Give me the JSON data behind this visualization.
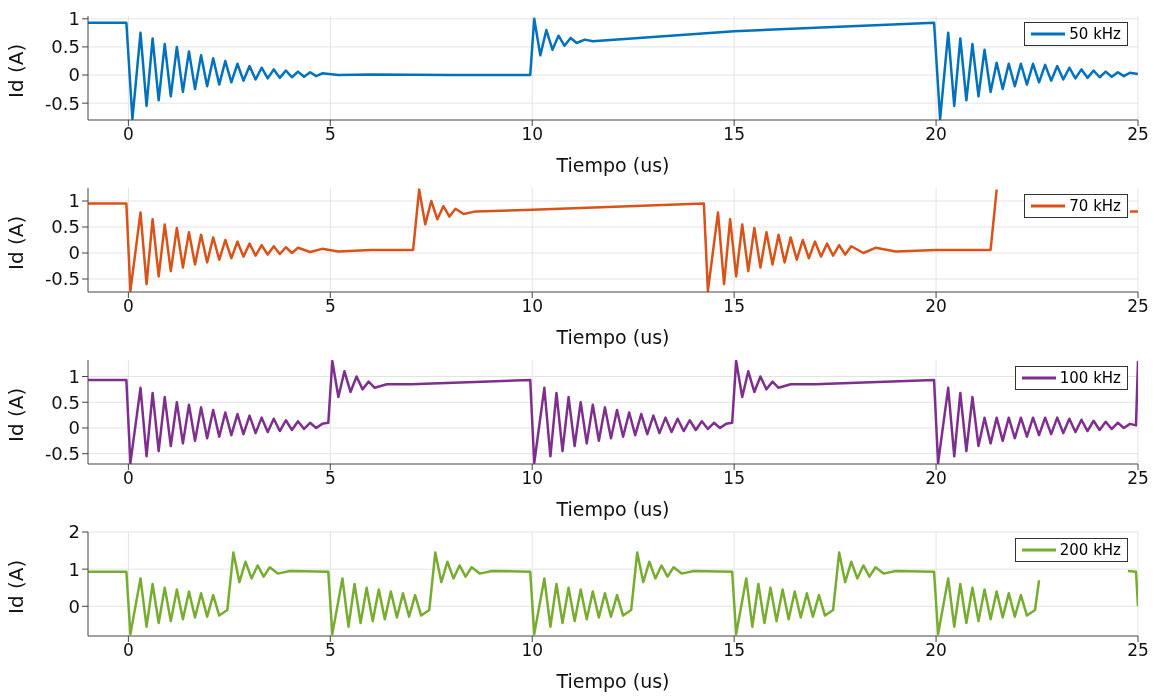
{
  "chart_data": [
    {
      "type": "line",
      "xlabel": "Tiempo (us)",
      "ylabel": "Id (A)",
      "xlim": [
        -1,
        25
      ],
      "xticks": [
        0,
        5,
        10,
        15,
        20,
        25
      ],
      "ylim": [
        -0.8,
        1.05
      ],
      "yticks": [
        -0.5,
        0,
        0.5,
        1
      ],
      "grid": true,
      "legend": "top right",
      "series": [
        {
          "name": "50 kHz",
          "color": "#0072bd",
          "x": [
            -1,
            -0.05,
            0.1,
            0.3,
            0.45,
            0.6,
            0.75,
            0.9,
            1.05,
            1.2,
            1.35,
            1.5,
            1.65,
            1.8,
            1.95,
            2.1,
            2.25,
            2.4,
            2.55,
            2.7,
            2.85,
            3.0,
            3.15,
            3.3,
            3.45,
            3.6,
            3.75,
            3.9,
            4.05,
            4.2,
            4.35,
            4.5,
            4.65,
            4.8,
            5.2,
            6,
            8,
            9.95,
            10.05,
            10.2,
            10.35,
            10.5,
            10.65,
            10.8,
            10.95,
            11.1,
            11.3,
            11.5,
            15,
            19.95,
            20.1,
            20.3,
            20.45,
            20.6,
            20.75,
            20.9,
            21.05,
            21.2,
            21.35,
            21.5,
            21.65,
            21.8,
            21.95,
            22.1,
            22.25,
            22.4,
            22.55,
            22.7,
            22.85,
            23.0,
            23.15,
            23.3,
            23.45,
            23.6,
            23.75,
            23.9,
            24.05,
            24.2,
            24.35,
            24.5,
            24.65,
            24.8,
            25
          ],
          "values": [
            0.93,
            0.93,
            -0.78,
            0.75,
            -0.55,
            0.65,
            -0.45,
            0.55,
            -0.38,
            0.5,
            -0.3,
            0.42,
            -0.25,
            0.35,
            -0.2,
            0.3,
            -0.17,
            0.25,
            -0.13,
            0.2,
            -0.1,
            0.16,
            -0.08,
            0.13,
            -0.06,
            0.1,
            -0.05,
            0.08,
            -0.04,
            0.06,
            -0.03,
            0.05,
            -0.02,
            0.03,
            0,
            0.01,
            0,
            0,
            1.0,
            0.35,
            0.8,
            0.45,
            0.7,
            0.52,
            0.66,
            0.57,
            0.63,
            0.6,
            0.78,
            0.93,
            -0.78,
            0.75,
            -0.55,
            0.65,
            -0.45,
            0.55,
            -0.38,
            0.45,
            -0.3,
            0.22,
            -0.25,
            0.2,
            -0.2,
            0.2,
            -0.17,
            0.2,
            -0.13,
            0.18,
            -0.1,
            0.16,
            -0.08,
            0.13,
            -0.06,
            0.1,
            -0.05,
            0.08,
            -0.04,
            0.06,
            -0.03,
            0.05,
            -0.02,
            0.04,
            0.02
          ]
        }
      ]
    },
    {
      "type": "line",
      "xlabel": "Tiempo (us)",
      "ylabel": "Id (A)",
      "xlim": [
        -1,
        25
      ],
      "xticks": [
        0,
        5,
        10,
        15,
        20,
        25
      ],
      "ylim": [
        -0.75,
        1.25
      ],
      "yticks": [
        -0.5,
        0,
        0.5,
        1
      ],
      "grid": true,
      "legend": "top right",
      "series": [
        {
          "name": "70 kHz",
          "color": "#d95319",
          "x": [
            -1,
            -0.05,
            0.05,
            0.3,
            0.45,
            0.6,
            0.75,
            0.9,
            1.05,
            1.2,
            1.35,
            1.5,
            1.65,
            1.8,
            1.95,
            2.1,
            2.25,
            2.4,
            2.55,
            2.7,
            2.85,
            3.0,
            3.15,
            3.3,
            3.45,
            3.6,
            3.75,
            3.9,
            4.05,
            4.2,
            4.5,
            4.8,
            5.2,
            6,
            7.05,
            7.2,
            7.35,
            7.5,
            7.65,
            7.8,
            7.95,
            8.1,
            8.3,
            8.6,
            10,
            14.25,
            14.35,
            14.6,
            14.75,
            14.9,
            15.05,
            15.2,
            15.35,
            15.5,
            15.65,
            15.8,
            15.95,
            16.1,
            16.25,
            16.4,
            16.55,
            16.7,
            16.85,
            17.0,
            17.15,
            17.3,
            17.45,
            17.6,
            17.75,
            17.9,
            18.2,
            18.5,
            19,
            20,
            21.35,
            21.5,
            21.6,
            24.8,
            25
          ],
          "values": [
            0.95,
            0.95,
            -0.73,
            0.78,
            -0.6,
            0.65,
            -0.45,
            0.55,
            -0.35,
            0.48,
            -0.28,
            0.4,
            -0.22,
            0.35,
            -0.18,
            0.3,
            -0.13,
            0.25,
            -0.1,
            0.22,
            -0.07,
            0.18,
            -0.05,
            0.15,
            -0.03,
            0.13,
            -0.02,
            0.11,
            0,
            0.1,
            0.02,
            0.08,
            0.03,
            0.06,
            0.06,
            1.22,
            0.55,
            1.0,
            0.65,
            0.9,
            0.7,
            0.85,
            0.75,
            0.8,
            0.83,
            0.95,
            -0.73,
            0.78,
            -0.6,
            0.65,
            -0.45,
            0.55,
            -0.35,
            0.48,
            -0.28,
            0.4,
            -0.22,
            0.35,
            -0.18,
            0.3,
            -0.13,
            0.25,
            -0.1,
            0.22,
            -0.07,
            0.18,
            -0.05,
            0.15,
            -0.03,
            0.13,
            0,
            0.1,
            0.03,
            0.06,
            0.06,
            1.22,
            null,
            0.8,
            0.8
          ]
        }
      ]
    },
    {
      "type": "line",
      "xlabel": "Tiempo (us)",
      "ylabel": "Id (A)",
      "xlim": [
        -1,
        25
      ],
      "xticks": [
        0,
        5,
        10,
        15,
        20,
        25
      ],
      "ylim": [
        -0.7,
        1.32
      ],
      "yticks": [
        -0.5,
        0,
        0.5,
        1
      ],
      "grid": true,
      "legend": "top right",
      "series": [
        {
          "name": "100 kHz",
          "color": "#7e2f8e",
          "x": [
            -1,
            -0.05,
            0.05,
            0.3,
            0.45,
            0.6,
            0.75,
            0.9,
            1.05,
            1.2,
            1.35,
            1.5,
            1.65,
            1.8,
            1.95,
            2.1,
            2.25,
            2.4,
            2.55,
            2.7,
            2.85,
            3.0,
            3.15,
            3.3,
            3.45,
            3.6,
            3.75,
            3.9,
            4.05,
            4.2,
            4.35,
            4.5,
            4.65,
            4.8,
            4.95,
            5.05,
            5.2,
            5.35,
            5.5,
            5.65,
            5.8,
            5.95,
            6.1,
            6.4,
            7,
            9.95,
            10.05,
            10.3,
            10.45,
            10.6,
            10.75,
            10.9,
            11.05,
            11.2,
            11.35,
            11.5,
            11.65,
            11.8,
            11.95,
            12.1,
            12.25,
            12.4,
            12.55,
            12.7,
            12.85,
            13.0,
            13.15,
            13.3,
            13.45,
            13.6,
            13.75,
            13.9,
            14.05,
            14.2,
            14.35,
            14.5,
            14.65,
            14.8,
            14.95,
            15.05,
            15.2,
            15.35,
            15.5,
            15.65,
            15.8,
            15.95,
            16.1,
            16.4,
            17,
            19.95,
            20.05,
            20.3,
            20.45,
            20.6,
            20.75,
            20.9,
            21.05,
            21.2,
            21.35,
            21.5,
            21.65,
            21.8,
            21.95,
            22.1,
            22.25,
            22.4,
            22.55,
            22.7,
            22.85,
            23.0,
            23.15,
            23.3,
            23.45,
            23.6,
            23.75,
            23.9,
            24.05,
            24.2,
            24.35,
            24.5,
            24.65,
            24.8,
            24.95,
            25
          ],
          "values": [
            0.93,
            0.93,
            -0.68,
            0.78,
            -0.55,
            0.68,
            -0.45,
            0.6,
            -0.35,
            0.5,
            -0.3,
            0.45,
            -0.25,
            0.4,
            -0.2,
            0.35,
            -0.17,
            0.3,
            -0.14,
            0.27,
            -0.12,
            0.24,
            -0.1,
            0.2,
            -0.08,
            0.18,
            -0.06,
            0.15,
            -0.04,
            0.13,
            -0.02,
            0.1,
            0,
            0.08,
            0.1,
            1.3,
            0.6,
            1.1,
            0.7,
            1.0,
            0.75,
            0.9,
            0.78,
            0.85,
            0.85,
            0.93,
            -0.68,
            0.78,
            -0.55,
            0.68,
            -0.45,
            0.6,
            -0.35,
            0.5,
            -0.3,
            0.45,
            -0.25,
            0.4,
            -0.2,
            0.35,
            -0.17,
            0.3,
            -0.14,
            0.27,
            -0.12,
            0.24,
            -0.1,
            0.2,
            -0.08,
            0.18,
            -0.06,
            0.15,
            -0.04,
            0.13,
            -0.02,
            0.1,
            0,
            0.08,
            0.1,
            1.3,
            0.6,
            1.1,
            0.7,
            1.0,
            0.75,
            0.9,
            0.78,
            0.85,
            0.85,
            0.93,
            -0.68,
            0.78,
            -0.55,
            0.68,
            -0.45,
            0.6,
            -0.35,
            0.2,
            -0.3,
            0.2,
            -0.25,
            0.2,
            -0.2,
            0.2,
            -0.17,
            0.2,
            -0.14,
            0.2,
            -0.12,
            0.2,
            -0.1,
            0.18,
            -0.08,
            0.16,
            -0.06,
            0.14,
            -0.04,
            0.12,
            -0.02,
            0.1,
            0,
            0.08,
            0.05,
            1.3
          ]
        }
      ]
    },
    {
      "type": "line",
      "xlabel": "Tiempo (us)",
      "ylabel": "Id (A)",
      "xlim": [
        -1,
        25
      ],
      "xticks": [
        0,
        5,
        10,
        15,
        20,
        25
      ],
      "ylim": [
        -0.8,
        2
      ],
      "yticks": [
        0,
        1,
        2
      ],
      "grid": true,
      "legend": "top right",
      "series": [
        {
          "name": "200 kHz",
          "color": "#77ac30",
          "x": [
            -1,
            -0.05,
            0.05,
            0.3,
            0.45,
            0.6,
            0.75,
            0.9,
            1.05,
            1.2,
            1.35,
            1.5,
            1.65,
            1.8,
            1.95,
            2.1,
            2.25,
            2.45,
            2.6,
            2.75,
            2.9,
            3.05,
            3.2,
            3.35,
            3.5,
            3.7,
            4,
            4.95,
            5.05,
            5.3,
            5.45,
            5.6,
            5.75,
            5.9,
            6.05,
            6.2,
            6.35,
            6.5,
            6.65,
            6.8,
            6.95,
            7.1,
            7.25,
            7.45,
            7.6,
            7.75,
            7.9,
            8.05,
            8.2,
            8.35,
            8.5,
            8.7,
            9,
            9.95,
            10.05,
            10.3,
            10.45,
            10.6,
            10.75,
            10.9,
            11.05,
            11.2,
            11.35,
            11.5,
            11.65,
            11.8,
            11.95,
            12.1,
            12.25,
            12.45,
            12.6,
            12.75,
            12.9,
            13.05,
            13.2,
            13.35,
            13.5,
            13.7,
            14,
            14.95,
            15.05,
            15.3,
            15.45,
            15.6,
            15.75,
            15.9,
            16.05,
            16.2,
            16.35,
            16.5,
            16.65,
            16.8,
            16.95,
            17.1,
            17.25,
            17.45,
            17.6,
            17.75,
            17.9,
            18.05,
            18.2,
            18.35,
            18.5,
            18.7,
            19,
            19.95,
            20.05,
            20.3,
            20.45,
            20.6,
            20.75,
            20.9,
            21.05,
            21.2,
            21.35,
            21.5,
            21.65,
            21.8,
            21.95,
            22.1,
            22.25,
            22.45,
            22.55,
            22.6,
            24.75,
            24.95,
            25
          ],
          "values": [
            0.93,
            0.93,
            -0.75,
            0.75,
            -0.55,
            0.6,
            -0.45,
            0.5,
            -0.4,
            0.45,
            -0.35,
            0.4,
            -0.3,
            0.35,
            -0.28,
            0.3,
            -0.25,
            -0.1,
            1.45,
            0.65,
            1.2,
            0.75,
            1.1,
            0.8,
            1.05,
            0.88,
            0.95,
            0.93,
            -0.75,
            0.75,
            -0.55,
            0.6,
            -0.45,
            0.5,
            -0.4,
            0.45,
            -0.35,
            0.4,
            -0.3,
            0.35,
            -0.28,
            0.3,
            -0.25,
            -0.1,
            1.45,
            0.65,
            1.2,
            0.75,
            1.1,
            0.8,
            1.05,
            0.88,
            0.95,
            0.93,
            -0.75,
            0.75,
            -0.55,
            0.6,
            -0.45,
            0.5,
            -0.4,
            0.45,
            -0.35,
            0.4,
            -0.3,
            0.35,
            -0.28,
            0.3,
            -0.25,
            -0.1,
            1.45,
            0.65,
            1.2,
            0.75,
            1.1,
            0.8,
            1.05,
            0.88,
            0.95,
            0.93,
            -0.75,
            0.75,
            -0.55,
            0.6,
            -0.45,
            0.5,
            -0.4,
            0.45,
            -0.35,
            0.4,
            -0.3,
            0.35,
            -0.28,
            0.3,
            -0.25,
            -0.1,
            1.45,
            0.65,
            1.2,
            0.75,
            1.1,
            0.8,
            1.05,
            0.88,
            0.95,
            0.93,
            -0.75,
            0.75,
            -0.55,
            0.6,
            -0.45,
            0.5,
            -0.4,
            0.45,
            -0.35,
            0.4,
            -0.3,
            0.35,
            -0.28,
            0.3,
            -0.25,
            -0.1,
            0.7,
            null,
            0.95,
            0.93,
            0
          ]
        }
      ]
    }
  ]
}
